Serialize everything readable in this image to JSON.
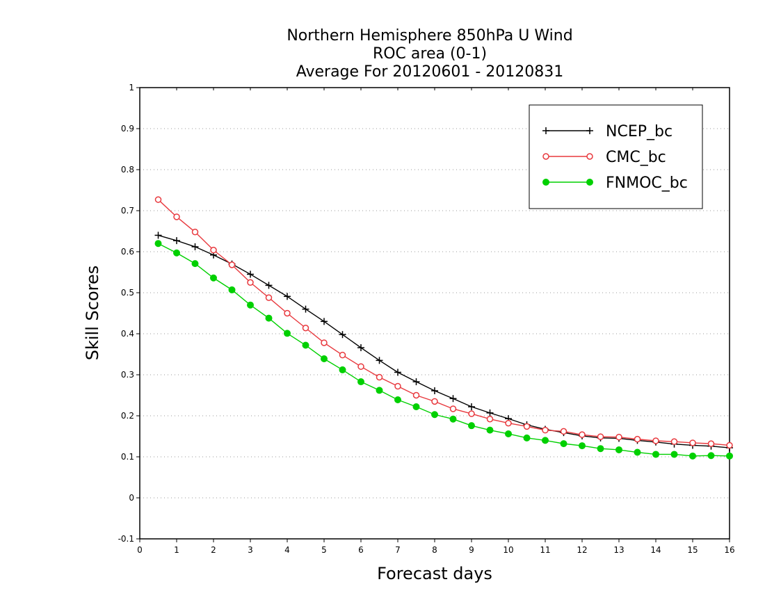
{
  "chart_data": {
    "type": "line",
    "title": [
      "Northern Hemisphere 850hPa U Wind",
      "ROC area (0-1)",
      "Average For 20120601 - 20120831"
    ],
    "xlabel": "Forecast days",
    "ylabel": "Skill Scores",
    "xlim": [
      0,
      16
    ],
    "ylim": [
      -0.1,
      1
    ],
    "xticks": [
      0,
      1,
      2,
      3,
      4,
      5,
      6,
      7,
      8,
      9,
      10,
      11,
      12,
      13,
      14,
      15,
      16
    ],
    "yticks": [
      -0.1,
      0,
      0.1,
      0.2,
      0.3,
      0.4,
      0.5,
      0.6,
      0.7,
      0.8,
      0.9,
      1
    ],
    "ytick_labels": [
      "-0.1",
      "0",
      "0.1",
      "0.2",
      "0.3",
      "0.4",
      "0.5",
      "0.6",
      "0.7",
      "0.8",
      "0.9",
      "1"
    ],
    "grid": "horizontal-dotted",
    "legend_position": "top-right",
    "x": [
      0.5,
      1,
      1.5,
      2,
      2.5,
      3,
      3.5,
      4,
      4.5,
      5,
      5.5,
      6,
      6.5,
      7,
      7.5,
      8,
      8.5,
      9,
      9.5,
      10,
      10.5,
      11,
      11.5,
      12,
      12.5,
      13,
      13.5,
      14,
      14.5,
      15,
      15.5,
      16
    ],
    "series": [
      {
        "name": "NCEP_bc",
        "color": "#000000",
        "marker": "plus",
        "values": [
          0.64,
          0.627,
          0.612,
          0.592,
          0.57,
          0.545,
          0.518,
          0.491,
          0.46,
          0.43,
          0.398,
          0.366,
          0.335,
          0.306,
          0.283,
          0.261,
          0.242,
          0.222,
          0.207,
          0.193,
          0.178,
          0.167,
          0.159,
          0.151,
          0.146,
          0.145,
          0.14,
          0.136,
          0.131,
          0.128,
          0.126,
          0.122
        ]
      },
      {
        "name": "CMC_bc",
        "color": "#e8383d",
        "marker": "open-circle",
        "values": [
          0.727,
          0.685,
          0.648,
          0.604,
          0.568,
          0.525,
          0.488,
          0.45,
          0.414,
          0.378,
          0.348,
          0.32,
          0.294,
          0.272,
          0.25,
          0.235,
          0.217,
          0.205,
          0.192,
          0.182,
          0.174,
          0.165,
          0.162,
          0.154,
          0.149,
          0.148,
          0.143,
          0.139,
          0.137,
          0.134,
          0.132,
          0.128
        ]
      },
      {
        "name": "FNMOC_bc",
        "color": "#00d000",
        "marker": "filled-circle",
        "values": [
          0.62,
          0.597,
          0.571,
          0.536,
          0.507,
          0.47,
          0.438,
          0.401,
          0.372,
          0.339,
          0.312,
          0.283,
          0.262,
          0.239,
          0.222,
          0.203,
          0.192,
          0.176,
          0.165,
          0.156,
          0.146,
          0.14,
          0.132,
          0.127,
          0.12,
          0.117,
          0.111,
          0.106,
          0.106,
          0.102,
          0.103,
          0.102
        ]
      }
    ]
  }
}
